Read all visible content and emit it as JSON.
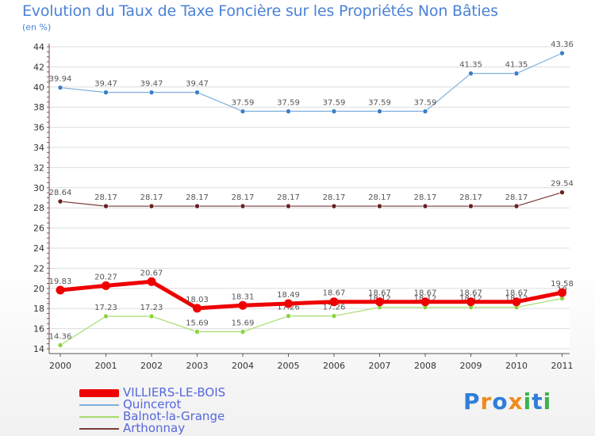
{
  "title": "Evolution du Taux de Taxe Foncière sur les Propriétés Non Bâties",
  "unit_label": "(en %)",
  "brand": "Proxiti",
  "chart_data": {
    "type": "line",
    "title": "Evolution du Taux de Taxe Foncière sur les Propriétés Non Bâties",
    "ylabel": "(en %)",
    "xlabel": "",
    "categories": [
      "2000",
      "2001",
      "2002",
      "2003",
      "2004",
      "2005",
      "2006",
      "2007",
      "2008",
      "2009",
      "2010",
      "2011"
    ],
    "ylim": [
      14,
      44
    ],
    "yticks": [
      14,
      16,
      18,
      20,
      22,
      24,
      26,
      28,
      30,
      32,
      34,
      36,
      38,
      40,
      42,
      44
    ],
    "grid": "horizontal",
    "series": [
      {
        "name": "Quincerot",
        "color": "#7fb0dd",
        "marker": "#3a7fc8",
        "stroke": 1.2,
        "values": [
          39.94,
          39.47,
          39.47,
          39.47,
          37.59,
          37.59,
          37.59,
          37.59,
          37.59,
          41.35,
          41.35,
          43.36
        ],
        "labels": [
          "39.94",
          "39.47",
          "39.47",
          "39.47",
          "37.59",
          "37.59",
          "37.59",
          "37.59",
          "37.59",
          "41.35",
          "41.35",
          "43.36"
        ]
      },
      {
        "name": "Arthonnay",
        "color": "#7a3a3a",
        "marker": "#6a2020",
        "stroke": 1.2,
        "values": [
          28.64,
          28.17,
          28.17,
          28.17,
          28.17,
          28.17,
          28.17,
          28.17,
          28.17,
          28.17,
          28.17,
          29.54
        ],
        "labels": [
          "28.64",
          "28.17",
          "28.17",
          "28.17",
          "28.17",
          "28.17",
          "28.17",
          "28.17",
          "28.17",
          "28.17",
          "28.17",
          "29.54"
        ]
      },
      {
        "name": "Balnot-la-Grange",
        "color": "#a6dc6e",
        "marker": "#8cd43c",
        "stroke": 1.2,
        "values": [
          14.36,
          17.23,
          17.23,
          15.69,
          15.69,
          17.26,
          17.26,
          18.12,
          18.12,
          18.12,
          18.12,
          19.0
        ],
        "labels": [
          "14.36",
          "17.23",
          "17.23",
          "15.69",
          "15.69",
          "17.26",
          "17.26",
          "18.12",
          "18.12",
          "18.12",
          "18.12",
          "19"
        ]
      },
      {
        "name": "VILLIERS-LE-BOIS",
        "color": "#ee0000",
        "marker": "#ee0000",
        "stroke": 5,
        "values": [
          19.83,
          20.27,
          20.67,
          18.03,
          18.31,
          18.49,
          18.67,
          18.67,
          18.67,
          18.67,
          18.67,
          19.58
        ],
        "labels": [
          "19.83",
          "20.27",
          "20.67",
          "18.03",
          "18.31",
          "18.49",
          "18.67",
          "18.67",
          "18.67",
          "18.67",
          "18.67",
          "19.58"
        ]
      }
    ]
  },
  "legend": [
    {
      "label": "VILLIERS-LE-BOIS",
      "color": "#ee0000",
      "thick": true
    },
    {
      "label": "Quincerot",
      "color": "#7fb0dd",
      "thick": false
    },
    {
      "label": "Balnot-la-Grange",
      "color": "#a6dc6e",
      "thick": false
    },
    {
      "label": "Arthonnay",
      "color": "#7a3a3a",
      "thick": false
    }
  ],
  "logo_colors": [
    "#2f7fd8",
    "#f08a1c",
    "#2f7fd8",
    "#f08a1c",
    "#3ab24a",
    "#2f7fd8",
    "#3ab24a"
  ]
}
